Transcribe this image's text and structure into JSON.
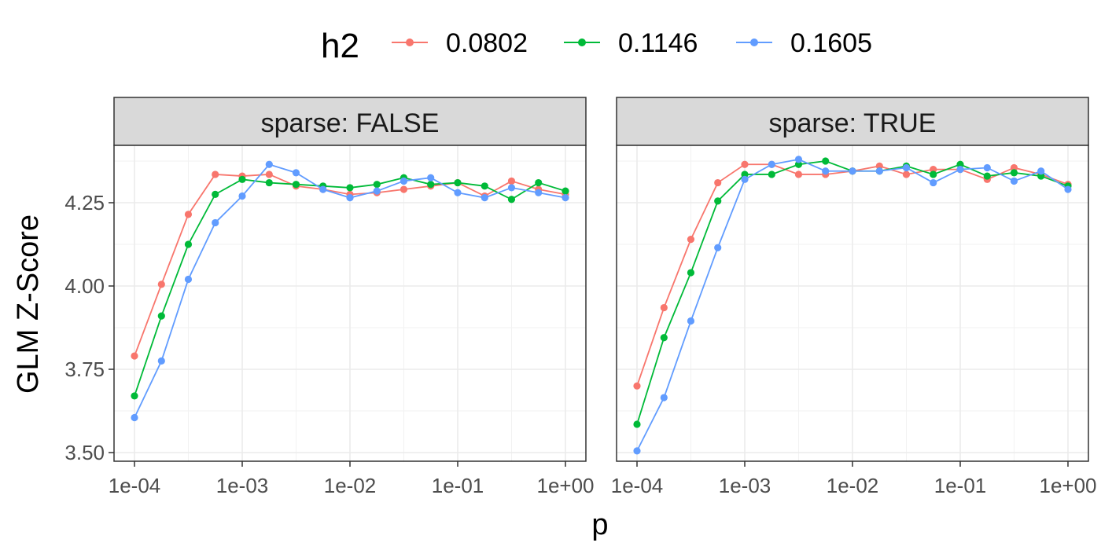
{
  "chart_data": {
    "type": "line",
    "x_scale": "log10",
    "xlabel": "p",
    "ylabel": "GLM Z-Score",
    "xlim": [
      0.0001,
      1
    ],
    "ylim": [
      3.5,
      4.25
    ],
    "x_ticks": [
      {
        "value": 0.0001,
        "label": "1e-04"
      },
      {
        "value": 0.001,
        "label": "1e-03"
      },
      {
        "value": 0.01,
        "label": "1e-02"
      },
      {
        "value": 0.1,
        "label": "1e-01"
      },
      {
        "value": 1,
        "label": "1e+00"
      }
    ],
    "y_ticks": [
      {
        "value": 3.5,
        "label": "3.50"
      },
      {
        "value": 3.75,
        "label": "3.75"
      },
      {
        "value": 4.0,
        "label": "4.00"
      },
      {
        "value": 4.25,
        "label": "4.25"
      }
    ],
    "legend": {
      "title": "h2",
      "position": "top",
      "entries": [
        {
          "label": "0.0802",
          "color": "#F8766D"
        },
        {
          "label": "0.1146",
          "color": "#00BA38"
        },
        {
          "label": "0.1605",
          "color": "#619CFF"
        }
      ]
    },
    "grid": true,
    "x": [
      0.0001,
      0.000178,
      0.000316,
      0.000562,
      0.001,
      0.00178,
      0.00316,
      0.00562,
      0.01,
      0.0178,
      0.0316,
      0.0562,
      0.1,
      0.178,
      0.316,
      0.562,
      1
    ],
    "panels": [
      {
        "label": "sparse: FALSE",
        "series": [
          {
            "name": "0.0802",
            "color": "#F8766D",
            "values": [
              3.79,
              4.005,
              4.215,
              4.335,
              4.33,
              4.335,
              4.3,
              4.29,
              4.275,
              4.28,
              4.29,
              4.3,
              4.31,
              4.27,
              4.315,
              4.29,
              4.275
            ]
          },
          {
            "name": "0.1146",
            "color": "#00BA38",
            "values": [
              3.67,
              3.91,
              4.125,
              4.275,
              4.32,
              4.31,
              4.305,
              4.3,
              4.295,
              4.305,
              4.325,
              4.305,
              4.31,
              4.3,
              4.26,
              4.31,
              4.285
            ]
          },
          {
            "name": "0.1605",
            "color": "#619CFF",
            "values": [
              3.605,
              3.775,
              4.02,
              4.19,
              4.27,
              4.365,
              4.34,
              4.29,
              4.265,
              4.285,
              4.315,
              4.325,
              4.28,
              4.265,
              4.295,
              4.28,
              4.265
            ]
          }
        ]
      },
      {
        "label": "sparse: TRUE",
        "series": [
          {
            "name": "0.0802",
            "color": "#F8766D",
            "values": [
              3.7,
              3.935,
              4.14,
              4.31,
              4.365,
              4.365,
              4.335,
              4.335,
              4.345,
              4.36,
              4.335,
              4.35,
              4.35,
              4.32,
              4.355,
              4.335,
              4.305
            ]
          },
          {
            "name": "0.1146",
            "color": "#00BA38",
            "values": [
              3.585,
              3.845,
              4.04,
              4.255,
              4.335,
              4.335,
              4.365,
              4.375,
              4.345,
              4.345,
              4.36,
              4.335,
              4.365,
              4.33,
              4.34,
              4.33,
              4.3
            ]
          },
          {
            "name": "0.1605",
            "color": "#619CFF",
            "values": [
              3.505,
              3.665,
              3.895,
              4.115,
              4.32,
              4.365,
              4.38,
              4.345,
              4.345,
              4.345,
              4.355,
              4.31,
              4.35,
              4.355,
              4.315,
              4.345,
              4.29
            ]
          }
        ]
      }
    ]
  }
}
